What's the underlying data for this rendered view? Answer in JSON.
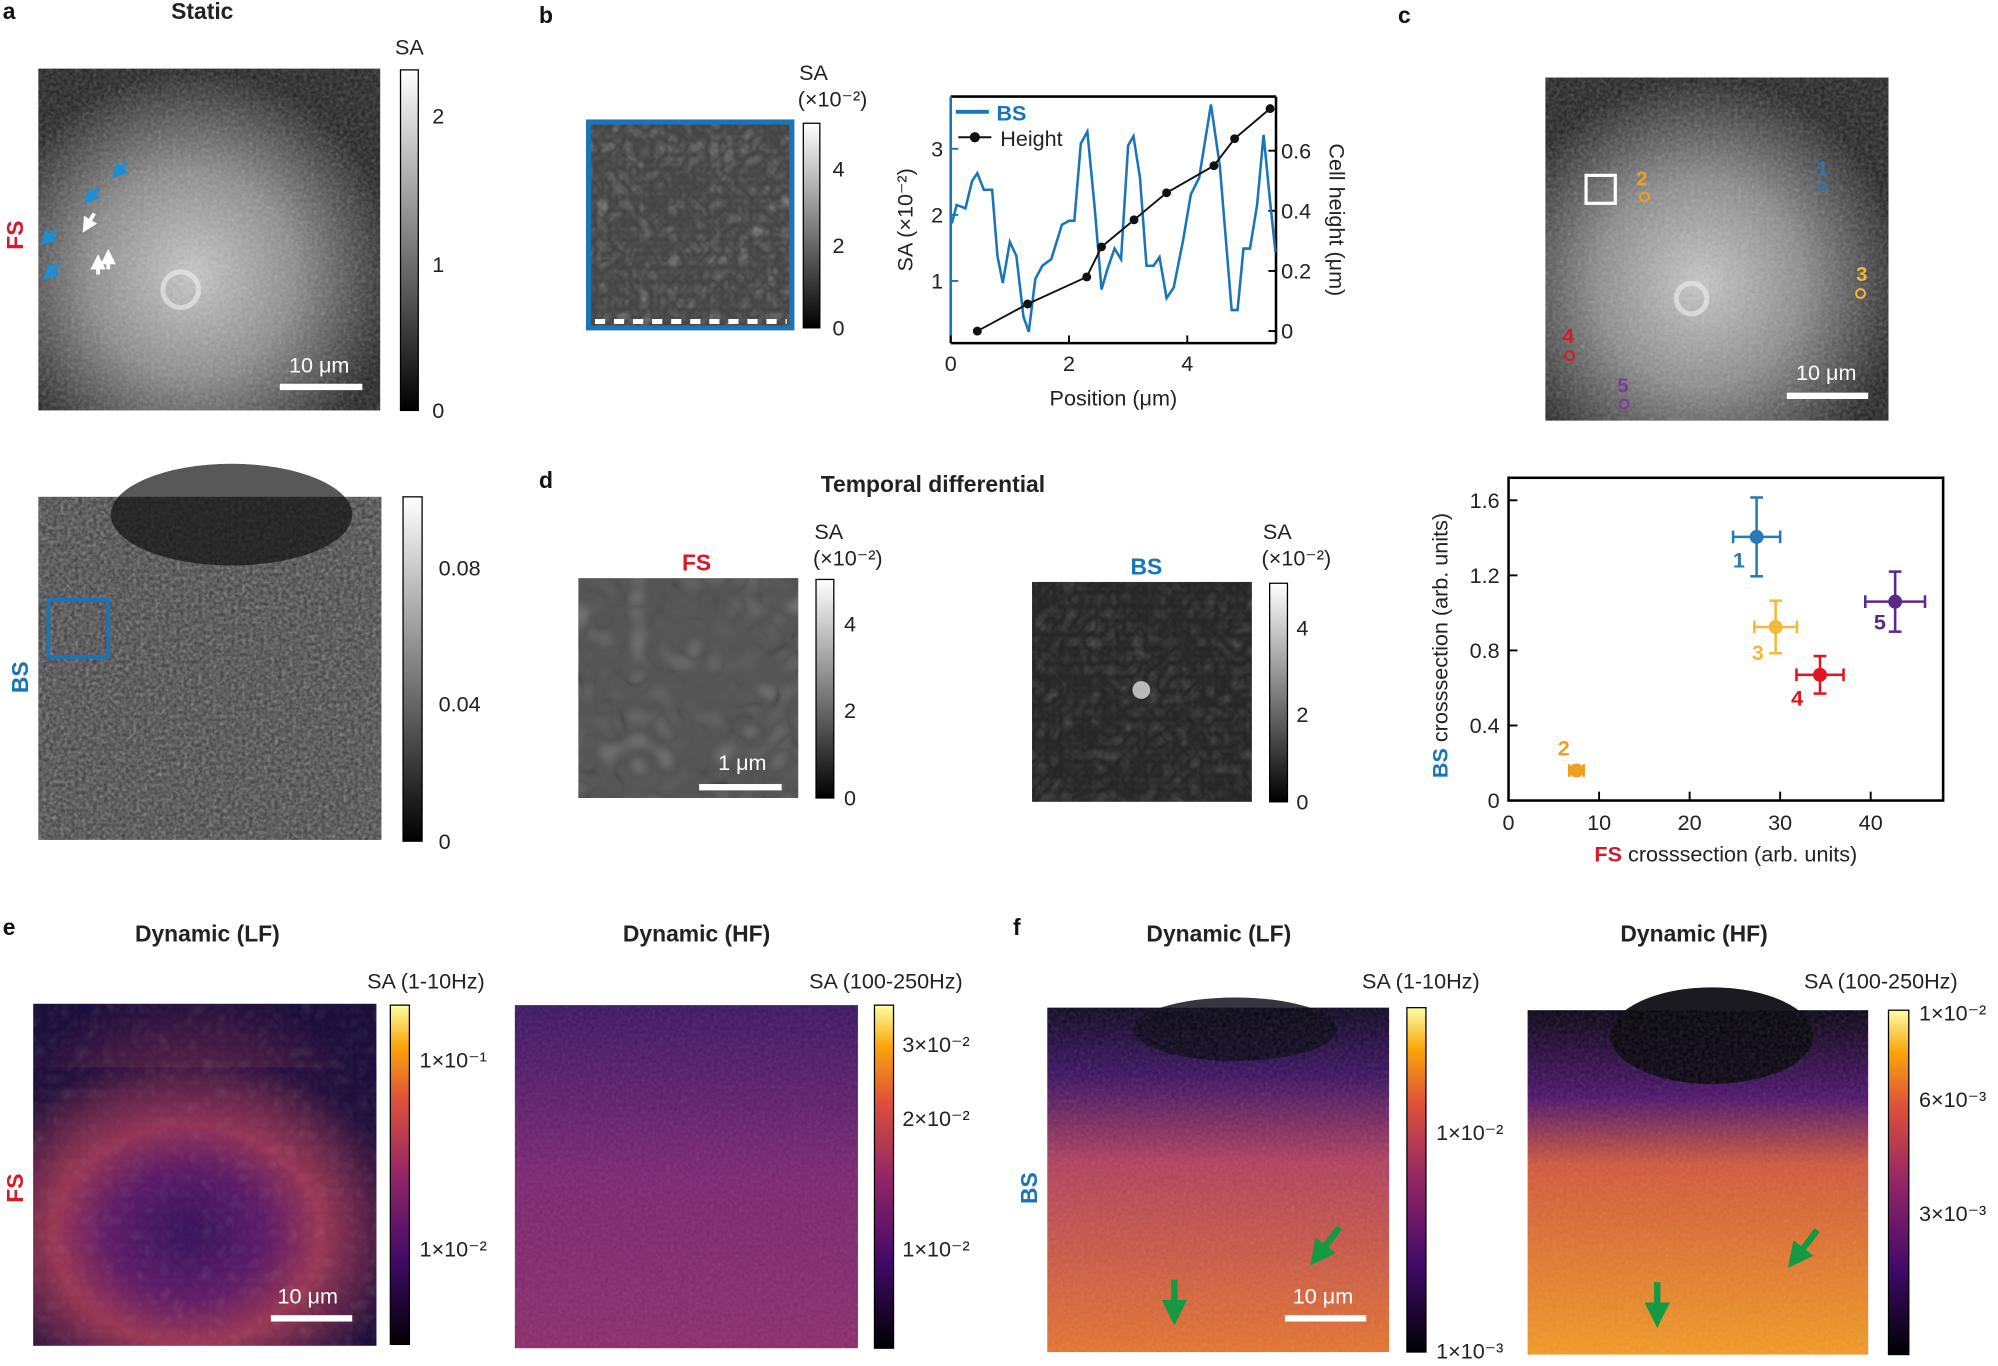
{
  "colors": {
    "fs": "#d7192b",
    "bs": "#1a74b8",
    "p1": "#2a78b5",
    "p2": "#f0a020",
    "p3": "#f5b83a",
    "p4": "#e0151f",
    "p5": "#5b2a86",
    "arrow_green": "#139a43",
    "arrow_blue": "#1a8fd6"
  },
  "panel_a": {
    "letter": "a",
    "title": "Static",
    "fs_label": "FS",
    "bs_label": "BS",
    "fs_colorbar": {
      "label": "SA",
      "ticks": [
        "2",
        "1",
        "0"
      ]
    },
    "bs_colorbar": {
      "ticks": [
        "0.08",
        "0.04",
        "0"
      ]
    },
    "scalebar": "10 μm"
  },
  "panel_b": {
    "letter": "b",
    "colorbar": {
      "label": "SA",
      "unit": "(×10⁻²)",
      "ticks": [
        "4",
        "2",
        "0"
      ]
    }
  },
  "panel_c": {
    "letter": "c",
    "scalebar": "10 μm",
    "markers": [
      "1",
      "2",
      "3",
      "4",
      "5"
    ],
    "xlabel_prefix": "FS",
    "xlabel_rest": " crosssection (arb. units)",
    "ylabel_prefix": "BS",
    "ylabel_rest": " crosssection (arb. units)"
  },
  "panel_d": {
    "letter": "d",
    "title": "Temporal differential",
    "fs_label": "FS",
    "bs_label": "BS",
    "scalebar": "1 μm",
    "fs_colorbar": {
      "label": "SA",
      "unit": "(×10⁻²)",
      "ticks": [
        "4",
        "2",
        "0"
      ]
    },
    "bs_colorbar": {
      "label": "SA",
      "unit": "(×10⁻²)",
      "ticks": [
        "4",
        "2",
        "0"
      ]
    }
  },
  "panel_e": {
    "letter": "e",
    "side_label": "FS",
    "lf_title": "Dynamic (LF)",
    "hf_title": "Dynamic (HF)",
    "scalebar": "10 μm",
    "lf_colorbar": {
      "label": "SA (1-10Hz)",
      "ticks": [
        "1×10⁻¹",
        "1×10⁻²"
      ]
    },
    "hf_colorbar": {
      "label": "SA (100-250Hz)",
      "ticks": [
        "3×10⁻²",
        "2×10⁻²",
        "1×10⁻²"
      ]
    }
  },
  "panel_f": {
    "letter": "f",
    "side_label": "BS",
    "lf_title": "Dynamic (LF)",
    "hf_title": "Dynamic (HF)",
    "scalebar": "10 μm",
    "lf_colorbar": {
      "label": "SA (1-10Hz)",
      "ticks": [
        "1×10⁻²",
        "1×10⁻³"
      ]
    },
    "hf_colorbar": {
      "label": "SA (100-250Hz)",
      "ticks": [
        "1×10⁻²",
        "6×10⁻³",
        "3×10⁻³"
      ]
    }
  },
  "chart_data": [
    {
      "type": "line",
      "xlabel": "Position (μm)",
      "ylabel": "SA (×10⁻²)",
      "y2label": "Cell height (μm)",
      "xlim": [
        0,
        5.5
      ],
      "ylim": [
        0.06,
        3.79
      ],
      "y2lim": [
        -0.04,
        0.78
      ],
      "xticks": [
        "0",
        "2",
        "4"
      ],
      "yticks": [
        "1",
        "2",
        "3"
      ],
      "y2ticks": [
        "0",
        "0.2",
        "0.4",
        "0.6"
      ],
      "legend_position": "top-left",
      "series": [
        {
          "name": "BS",
          "axis": "left",
          "color": "#1a74b8",
          "x": [
            0.02,
            0.1,
            0.25,
            0.36,
            0.45,
            0.56,
            0.7,
            0.79,
            0.88,
            1.0,
            1.11,
            1.23,
            1.32,
            1.43,
            1.55,
            1.7,
            1.88,
            2.0,
            2.09,
            2.2,
            2.31,
            2.43,
            2.55,
            2.65,
            2.77,
            2.88,
            3.0,
            3.09,
            3.2,
            3.31,
            3.43,
            3.53,
            3.65,
            3.77,
            3.93,
            4.06,
            4.2,
            4.4,
            4.55,
            4.75,
            4.85,
            4.95,
            5.06,
            5.18,
            5.29,
            5.4,
            5.49
          ],
          "y": [
            1.87,
            2.15,
            2.1,
            2.51,
            2.63,
            2.38,
            2.38,
            1.38,
            0.97,
            1.59,
            1.38,
            0.46,
            0.23,
            1.03,
            1.23,
            1.33,
            1.85,
            1.91,
            1.91,
            3.08,
            3.26,
            2.15,
            0.87,
            1.18,
            1.49,
            1.33,
            3.05,
            3.19,
            2.56,
            1.23,
            1.23,
            1.36,
            0.74,
            0.9,
            1.62,
            2.31,
            2.56,
            3.67,
            2.74,
            0.56,
            0.56,
            1.49,
            1.49,
            2.15,
            3.21,
            2.2,
            1.44
          ]
        },
        {
          "name": "Height",
          "axis": "right",
          "color": "#111111",
          "markers": true,
          "x": [
            0.45,
            1.3,
            2.3,
            2.55,
            3.1,
            3.65,
            4.45,
            4.8,
            5.4
          ],
          "y": [
            0,
            0.09,
            0.18,
            0.28,
            0.37,
            0.46,
            0.55,
            0.64,
            0.74
          ]
        }
      ]
    },
    {
      "type": "scatter",
      "xlabel": "FS crosssection (arb. units)",
      "ylabel": "BS crosssection (arb. units)",
      "xlim": [
        0,
        48
      ],
      "ylim": [
        0,
        1.72
      ],
      "xticks": [
        "0",
        "10",
        "20",
        "30",
        "40"
      ],
      "yticks": [
        "0",
        "0.4",
        "0.8",
        "1.2",
        "1.6"
      ],
      "points": [
        {
          "label": "1",
          "x": 27.4,
          "y": 1.405,
          "xerr": 2.6,
          "yerr": 0.21,
          "color": "#2a78b5"
        },
        {
          "label": "2",
          "x": 7.5,
          "y": 0.16,
          "xerr": 0.8,
          "yerr": 0.02,
          "color": "#f0a020"
        },
        {
          "label": "3",
          "x": 29.5,
          "y": 0.925,
          "xerr": 2.35,
          "yerr": 0.14,
          "color": "#f5b83a"
        },
        {
          "label": "4",
          "x": 34.4,
          "y": 0.67,
          "xerr": 2.6,
          "yerr": 0.1,
          "color": "#e0151f"
        },
        {
          "label": "5",
          "x": 42.7,
          "y": 1.06,
          "xerr": 3.3,
          "yerr": 0.16,
          "color": "#5b2a86"
        }
      ]
    }
  ]
}
